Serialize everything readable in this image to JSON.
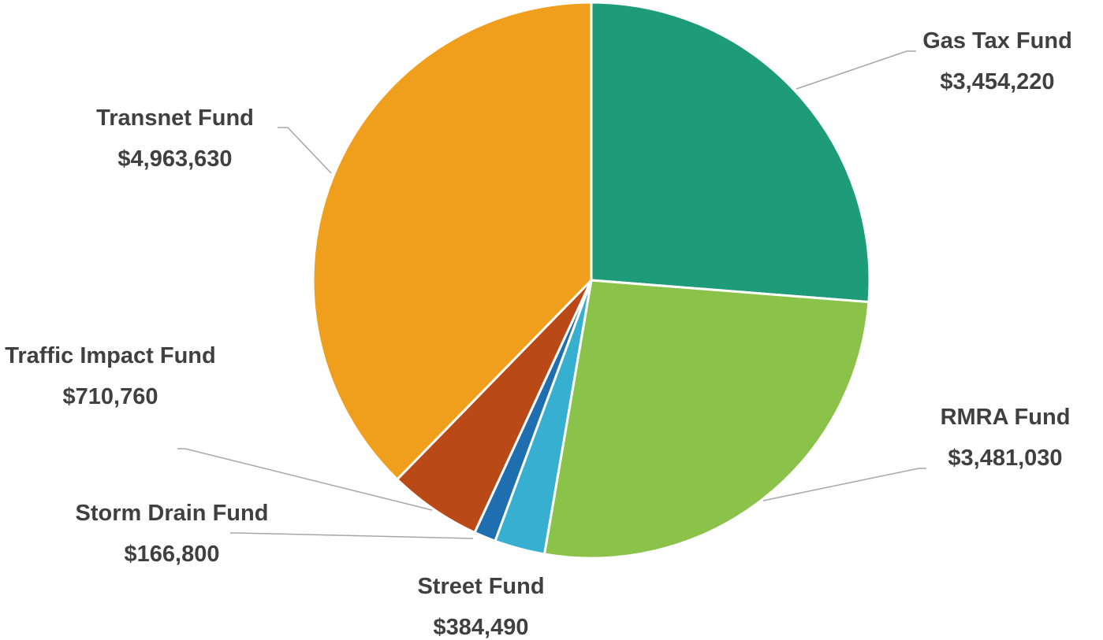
{
  "chart_data": {
    "type": "pie",
    "categories": [
      "Gas Tax Fund",
      "RMRA Fund",
      "Street Fund",
      "Storm Drain Fund",
      "Traffic Impact Fund",
      "Transnet Fund"
    ],
    "values": [
      3454220,
      3481030,
      384490,
      166800,
      710760,
      4963630
    ],
    "value_labels": [
      "$3,454,220",
      "$3,481,030",
      "$384,490",
      "$166,800",
      "$710,760",
      "$4,963,630"
    ],
    "colors": [
      "#1e9b78",
      "#8bc34a",
      "#37afd0",
      "#1f6fb0",
      "#b94917",
      "#f09f1c"
    ]
  }
}
